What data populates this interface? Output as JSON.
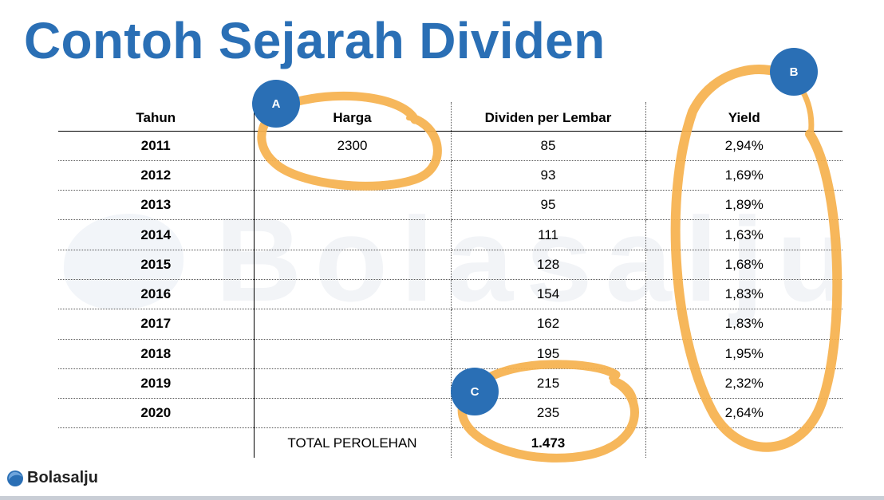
{
  "title": "Contoh Sejarah Dividen",
  "watermark": "Bolasalju",
  "table": {
    "headers": [
      "Tahun",
      "Harga",
      "Dividen per Lembar",
      "Yield"
    ],
    "rows": [
      {
        "year": "2011",
        "price": "2300",
        "dividend": "85",
        "yield": "2,94%"
      },
      {
        "year": "2012",
        "price": "",
        "dividend": "93",
        "yield": "1,69%"
      },
      {
        "year": "2013",
        "price": "",
        "dividend": "95",
        "yield": "1,89%"
      },
      {
        "year": "2014",
        "price": "",
        "dividend": "111",
        "yield": "1,63%"
      },
      {
        "year": "2015",
        "price": "",
        "dividend": "128",
        "yield": "1,68%"
      },
      {
        "year": "2016",
        "price": "",
        "dividend": "154",
        "yield": "1,83%"
      },
      {
        "year": "2017",
        "price": "",
        "dividend": "162",
        "yield": "1,83%"
      },
      {
        "year": "2018",
        "price": "",
        "dividend": "195",
        "yield": "1,95%"
      },
      {
        "year": "2019",
        "price": "",
        "dividend": "215",
        "yield": "2,32%"
      },
      {
        "year": "2020",
        "price": "",
        "dividend": "235",
        "yield": "2,64%"
      }
    ],
    "total_label": "TOTAL PEROLEHAN",
    "total_value": "1.473"
  },
  "badges": {
    "a": "A",
    "b": "B",
    "c": "C"
  },
  "footer": {
    "logo_text": "Bolasalju"
  },
  "colors": {
    "title": "#2a6fb5",
    "badge": "#2a6fb5",
    "highlight": "#f6b24f"
  }
}
